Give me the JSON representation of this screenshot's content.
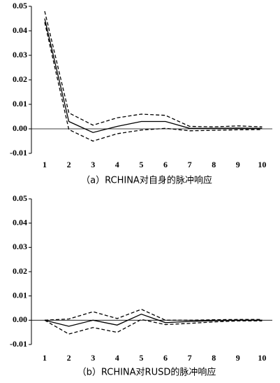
{
  "chart_data": [
    {
      "type": "line",
      "title": "（a）RCHINA对自身的脉冲响应",
      "categories": [
        "1",
        "2",
        "3",
        "4",
        "5",
        "6",
        "7",
        "8",
        "9",
        "10"
      ],
      "ylim": [
        -0.01,
        0.05
      ],
      "yticks": [
        {
          "value": -0.01,
          "label": "-0.01"
        },
        {
          "value": 0,
          "label": "0.00"
        },
        {
          "value": 0.01,
          "label": "0.01"
        },
        {
          "value": 0.02,
          "label": "0.02"
        },
        {
          "value": 0.03,
          "label": "0.03"
        },
        {
          "value": 0.04,
          "label": "0.04"
        },
        {
          "value": 0.05,
          "label": "0.05"
        }
      ],
      "series": [
        {
          "color": "#000000",
          "style": "solid",
          "values": [
            0.045,
            0.003,
            -0.0015,
            0.001,
            0.003,
            0.003,
            0.0002,
            0.0002,
            0.0003,
            0.0002
          ]
        },
        {
          "color": "#000000",
          "style": "dashed",
          "values": [
            0.048,
            0.0065,
            0.0015,
            0.0045,
            0.006,
            0.0055,
            0.001,
            0.0008,
            0.0012,
            0.0008
          ]
        },
        {
          "color": "#000000",
          "style": "dashed",
          "values": [
            0.0435,
            -0.0003,
            -0.005,
            -0.002,
            -0.0005,
            0.0002,
            -0.0008,
            -0.0006,
            -0.0004,
            -0.0003
          ]
        }
      ]
    },
    {
      "type": "line",
      "title": "（b）RCHINA对RUSD的脉冲响应",
      "categories": [
        "1",
        "2",
        "3",
        "4",
        "5",
        "6",
        "7",
        "8",
        "9",
        "10"
      ],
      "ylim": [
        -0.01,
        0.05
      ],
      "yticks": [
        {
          "value": -0.01,
          "label": "-0.01"
        },
        {
          "value": 0,
          "label": "0.00"
        },
        {
          "value": 0.01,
          "label": "0.01"
        },
        {
          "value": 0.02,
          "label": "0.02"
        },
        {
          "value": 0.03,
          "label": "0.03"
        },
        {
          "value": 0.04,
          "label": "0.04"
        },
        {
          "value": 0.05,
          "label": "0.05"
        }
      ],
      "series": [
        {
          "color": "#000000",
          "style": "solid",
          "values": [
            0,
            -0.0025,
            0,
            -0.002,
            0.0025,
            -0.001,
            -0.0005,
            -0.0002,
            0,
            0
          ]
        },
        {
          "color": "#000000",
          "style": "dashed",
          "values": [
            0,
            0.0005,
            0.0035,
            0.0007,
            0.0045,
            0,
            0,
            0.0002,
            0.0003,
            0.0003
          ]
        },
        {
          "color": "#000000",
          "style": "dashed",
          "values": [
            0,
            -0.0057,
            -0.003,
            -0.005,
            0.0003,
            -0.0018,
            -0.0013,
            -0.0007,
            -0.0003,
            -0.0003
          ]
        }
      ]
    }
  ]
}
